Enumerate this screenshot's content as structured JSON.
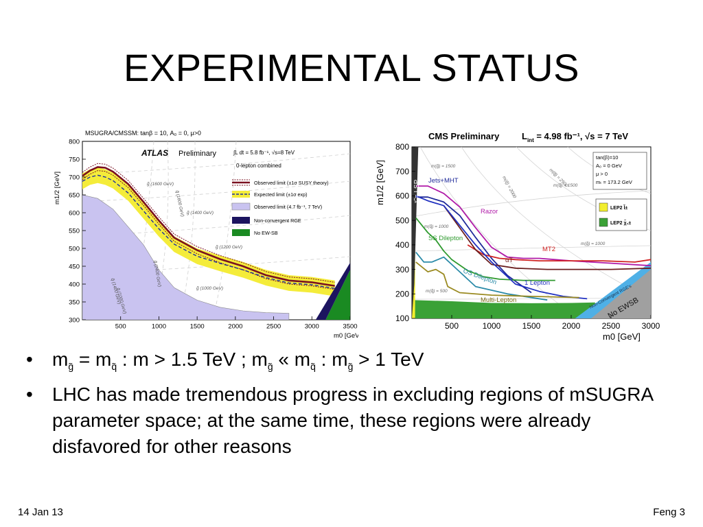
{
  "slide": {
    "title": "EXPERIMENTAL STATUS",
    "footer_left": "14 Jan 13",
    "footer_right": "Feng 3"
  },
  "bullets": [
    {
      "marker": "•",
      "parts": {
        "p1": "m",
        "s1": "g̃",
        "p2": " = m",
        "s2": "q̃",
        "p3": " : m > 1.5 TeV ;  m",
        "s3": "g̃",
        "p4": " « m",
        "s4": "q̃",
        "p5": " : m",
        "s5": "g̃",
        "p6": " > 1 TeV"
      }
    },
    {
      "marker": "•",
      "text": "LHC has made tremendous progress in excluding regions of mSUGRA parameter space; at the same time, these regions were already disfavored for other reasons"
    }
  ],
  "atlas_plot": {
    "header": "MSUGRA/CMSSM: tanβ = 10, A₀ = 0, μ>0",
    "brand": "ATLAS",
    "brand_suffix": "Preliminary",
    "lumi": "∫L dt = 5.8 fb⁻¹,  √s=8 TeV",
    "channel": "0-lepton combined",
    "ylabel": "m1/2 [GeV]",
    "xlabel": "m0 [GeV]",
    "legend": [
      "Observed limit (±1σ SUSY theory)",
      "Expected limit (±1σ exp)",
      "Observed limit (4.7 fb⁻¹, 7 TeV)",
      "Non-convergent RGE",
      "No EW-SB"
    ],
    "contour_labels": [
      "g̃ (1600 GeV)",
      "g̃ (1400 GeV)",
      "g̃ (1200 GeV)",
      "g̃ (1000 GeV)",
      "q̃ (2400 GeV)",
      "q̃ (1600 GeV)",
      "q̃ (1400 GeV)",
      "q̃ (1000 GeV)"
    ],
    "colors": {
      "observed": "#7a1020",
      "expected": "#1a2fa0",
      "band": "#f4ec3a",
      "old": "#c9c3f0",
      "nonconv": "#1c145f",
      "noewsb": "#1a8a22"
    }
  },
  "cms_plot": {
    "header": "CMS Preliminary",
    "lumi": "L",
    "lumi_sub": "int",
    "lumi_rest": " = 4.98 fb⁻¹, √s = 7 TeV",
    "ylabel": "m1/2 [GeV]",
    "xlabel": "m0 [GeV]",
    "params": [
      "tan(β)=10",
      "A₀ = 0 GeV",
      "μ > 0",
      "mₜ = 173.2 GeV"
    ],
    "legend": [
      "LEP2  l̃±",
      "LEP2  χ̃₁±"
    ],
    "curve_labels": [
      "Jets+MHT",
      "Razor",
      "SS Dilepton",
      "MT2",
      "αT",
      "OS Dilepton",
      "1 Lepton",
      "Multi-Lepton",
      "Non-Convergent RGE's",
      "No EWSB",
      "τ̃ = LSP"
    ],
    "contour_labels": [
      "m(g̃) = 1500",
      "m(q̃) = 2000",
      "m(q̃) = 2500",
      "m(q̃) = 1500",
      "m(q̃) = 1000",
      "m(g̃) = 1000",
      "m(q̃) = 500"
    ],
    "colors": {
      "lep_slepton": "#f2ee2e",
      "lep_chargino": "#3aa136",
      "noewsb": "#a0a0a0",
      "nonconv": "#4fb0e6"
    }
  },
  "chart_data": [
    {
      "type": "line",
      "title": "MSUGRA/CMSSM: tanβ = 10, A₀ = 0, μ>0",
      "xlabel": "m0 [GeV]",
      "ylabel": "m1/2 [GeV]",
      "xlim": [
        0,
        3500
      ],
      "ylim": [
        300,
        800
      ],
      "xticks": [
        500,
        1000,
        1500,
        2000,
        2500,
        3000,
        3500
      ],
      "yticks": [
        300,
        350,
        400,
        450,
        500,
        550,
        600,
        650,
        700,
        750,
        800
      ],
      "series": [
        {
          "name": "Observed limit (±1σ SUSY theory)",
          "x": [
            0,
            100,
            200,
            300,
            400,
            600,
            800,
            1000,
            1200,
            1500,
            1800,
            2100,
            2400,
            2700,
            3000,
            3300
          ],
          "y": [
            703,
            718,
            728,
            726,
            715,
            680,
            630,
            578,
            530,
            495,
            470,
            450,
            425,
            410,
            405,
            395
          ]
        },
        {
          "name": "Expected limit (±1σ exp)",
          "x": [
            0,
            100,
            200,
            300,
            400,
            600,
            800,
            1000,
            1200,
            1500,
            1800,
            2100,
            2400,
            2700,
            3000,
            3300
          ],
          "y": [
            688,
            700,
            705,
            700,
            690,
            655,
            605,
            555,
            512,
            478,
            458,
            440,
            418,
            403,
            398,
            388
          ]
        },
        {
          "name": "Observed limit (4.7 fb⁻¹, 7 TeV)",
          "x": [
            0,
            200,
            400,
            600,
            800,
            1000,
            1200,
            1500,
            1800,
            2100,
            2400,
            2700
          ],
          "y": [
            650,
            640,
            610,
            560,
            510,
            440,
            390,
            355,
            335,
            325,
            320,
            318
          ]
        }
      ]
    },
    {
      "type": "line",
      "title": "CMS Preliminary",
      "xlabel": "m0 [GeV]",
      "ylabel": "m1/2 [GeV]",
      "xlim": [
        0,
        3000
      ],
      "ylim": [
        100,
        800
      ],
      "xticks": [
        500,
        1000,
        1500,
        2000,
        2500,
        3000
      ],
      "yticks": [
        100,
        200,
        300,
        400,
        500,
        600,
        700,
        800
      ],
      "series": [
        {
          "name": "Jets+MHT",
          "x": [
            50,
            200,
            400,
            600,
            800,
            1000,
            1200,
            1500
          ],
          "y": [
            595,
            595,
            575,
            520,
            430,
            345,
            275,
            205
          ]
        },
        {
          "name": "Razor",
          "x": [
            50,
            200,
            400,
            600,
            800,
            1000,
            1200,
            1400,
            1600,
            1800,
            2000,
            2500,
            3000
          ],
          "y": [
            640,
            640,
            610,
            555,
            470,
            390,
            350,
            345,
            345,
            340,
            335,
            325,
            315
          ]
        },
        {
          "name": "SS Dilepton",
          "x": [
            50,
            200,
            300,
            400,
            500,
            700,
            900,
            1100,
            1400,
            1800
          ],
          "y": [
            510,
            450,
            420,
            375,
            340,
            295,
            270,
            260,
            255,
            255
          ]
        },
        {
          "name": "MT2",
          "x": [
            700,
            900,
            1100,
            1300,
            1600,
            2000,
            2400,
            2800,
            3000
          ],
          "y": [
            400,
            360,
            345,
            340,
            335,
            335,
            335,
            330,
            340
          ]
        },
        {
          "name": "αT",
          "x": [
            400,
            600,
            800,
            1000,
            1300,
            1700,
            2100,
            2500,
            3000
          ],
          "y": [
            560,
            470,
            380,
            320,
            305,
            300,
            300,
            300,
            305
          ]
        },
        {
          "name": "OS Dilepton",
          "x": [
            50,
            150,
            250,
            400,
            500,
            600,
            800,
            1200,
            1700
          ],
          "y": [
            370,
            330,
            330,
            350,
            320,
            290,
            230,
            200,
            175
          ]
        },
        {
          "name": "1 Lepton",
          "x": [
            50,
            200,
            400,
            600,
            800,
            1000,
            1300,
            1600,
            1900,
            2200
          ],
          "y": [
            600,
            580,
            560,
            480,
            400,
            330,
            240,
            210,
            190,
            180
          ]
        },
        {
          "name": "Multi-Lepton",
          "x": [
            50,
            200,
            300,
            400,
            450,
            600,
            1000,
            1500,
            2100
          ],
          "y": [
            330,
            290,
            300,
            280,
            230,
            205,
            195,
            190,
            185
          ]
        }
      ]
    }
  ]
}
